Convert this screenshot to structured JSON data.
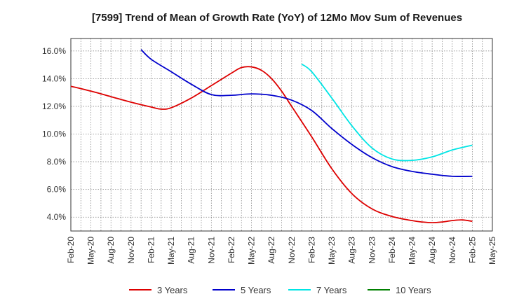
{
  "chart_data": {
    "type": "line",
    "title": "[7599]  Trend of Mean of Growth Rate (YoY) of 12Mo Mov Sum of Revenues",
    "xlabel": "",
    "ylabel": "",
    "ylim": [
      3.0,
      16.9
    ],
    "grid": true,
    "legend_position": "bottom",
    "categories": [
      "Feb-20",
      "May-20",
      "Aug-20",
      "Nov-20",
      "Feb-21",
      "May-21",
      "Aug-21",
      "Nov-21",
      "Feb-22",
      "May-22",
      "Aug-22",
      "Nov-22",
      "Feb-23",
      "May-23",
      "Aug-23",
      "Nov-23",
      "Feb-24",
      "May-24",
      "Aug-24",
      "Nov-24",
      "Feb-25",
      "May-25"
    ],
    "y_ticks": [
      4.0,
      6.0,
      8.0,
      10.0,
      12.0,
      14.0,
      16.0
    ],
    "y_tick_labels": [
      "4.0%",
      "6.0%",
      "8.0%",
      "10.0%",
      "12.0%",
      "14.0%",
      "16.0%"
    ],
    "series": [
      {
        "name": "3 Years",
        "color": "#dd0000",
        "points": [
          [
            0,
            13.45
          ],
          [
            1,
            13.1
          ],
          [
            2,
            12.7
          ],
          [
            3,
            12.3
          ],
          [
            4,
            11.95
          ],
          [
            4.5,
            11.8
          ],
          [
            5,
            11.9
          ],
          [
            6,
            12.6
          ],
          [
            7,
            13.5
          ],
          [
            8,
            14.4
          ],
          [
            8.5,
            14.8
          ],
          [
            9,
            14.85
          ],
          [
            9.5,
            14.6
          ],
          [
            10,
            14.0
          ],
          [
            10.5,
            13.1
          ],
          [
            11,
            12.0
          ],
          [
            12,
            9.8
          ],
          [
            13,
            7.5
          ],
          [
            14,
            5.7
          ],
          [
            15,
            4.6
          ],
          [
            16,
            4.05
          ],
          [
            17,
            3.75
          ],
          [
            17.5,
            3.65
          ],
          [
            18,
            3.6
          ],
          [
            18.5,
            3.65
          ],
          [
            19,
            3.75
          ],
          [
            19.5,
            3.8
          ],
          [
            20,
            3.7
          ]
        ]
      },
      {
        "name": "5 Years",
        "color": "#0000cc",
        "points": [
          [
            3.5,
            16.1
          ],
          [
            4,
            15.4
          ],
          [
            5,
            14.5
          ],
          [
            6,
            13.6
          ],
          [
            7,
            12.85
          ],
          [
            8,
            12.8
          ],
          [
            9,
            12.9
          ],
          [
            10,
            12.8
          ],
          [
            11,
            12.45
          ],
          [
            12,
            11.7
          ],
          [
            13,
            10.4
          ],
          [
            14,
            9.25
          ],
          [
            15,
            8.3
          ],
          [
            16,
            7.65
          ],
          [
            17,
            7.3
          ],
          [
            18,
            7.1
          ],
          [
            19,
            6.95
          ],
          [
            20,
            6.95
          ]
        ]
      },
      {
        "name": "7 Years",
        "color": "#00e5e5",
        "points": [
          [
            11.5,
            15.05
          ],
          [
            12,
            14.5
          ],
          [
            13,
            12.6
          ],
          [
            14,
            10.6
          ],
          [
            15,
            9.0
          ],
          [
            16,
            8.2
          ],
          [
            17,
            8.1
          ],
          [
            18,
            8.35
          ],
          [
            19,
            8.85
          ],
          [
            20,
            9.2
          ]
        ]
      },
      {
        "name": "10 Years",
        "color": "#008000",
        "points": []
      }
    ]
  }
}
